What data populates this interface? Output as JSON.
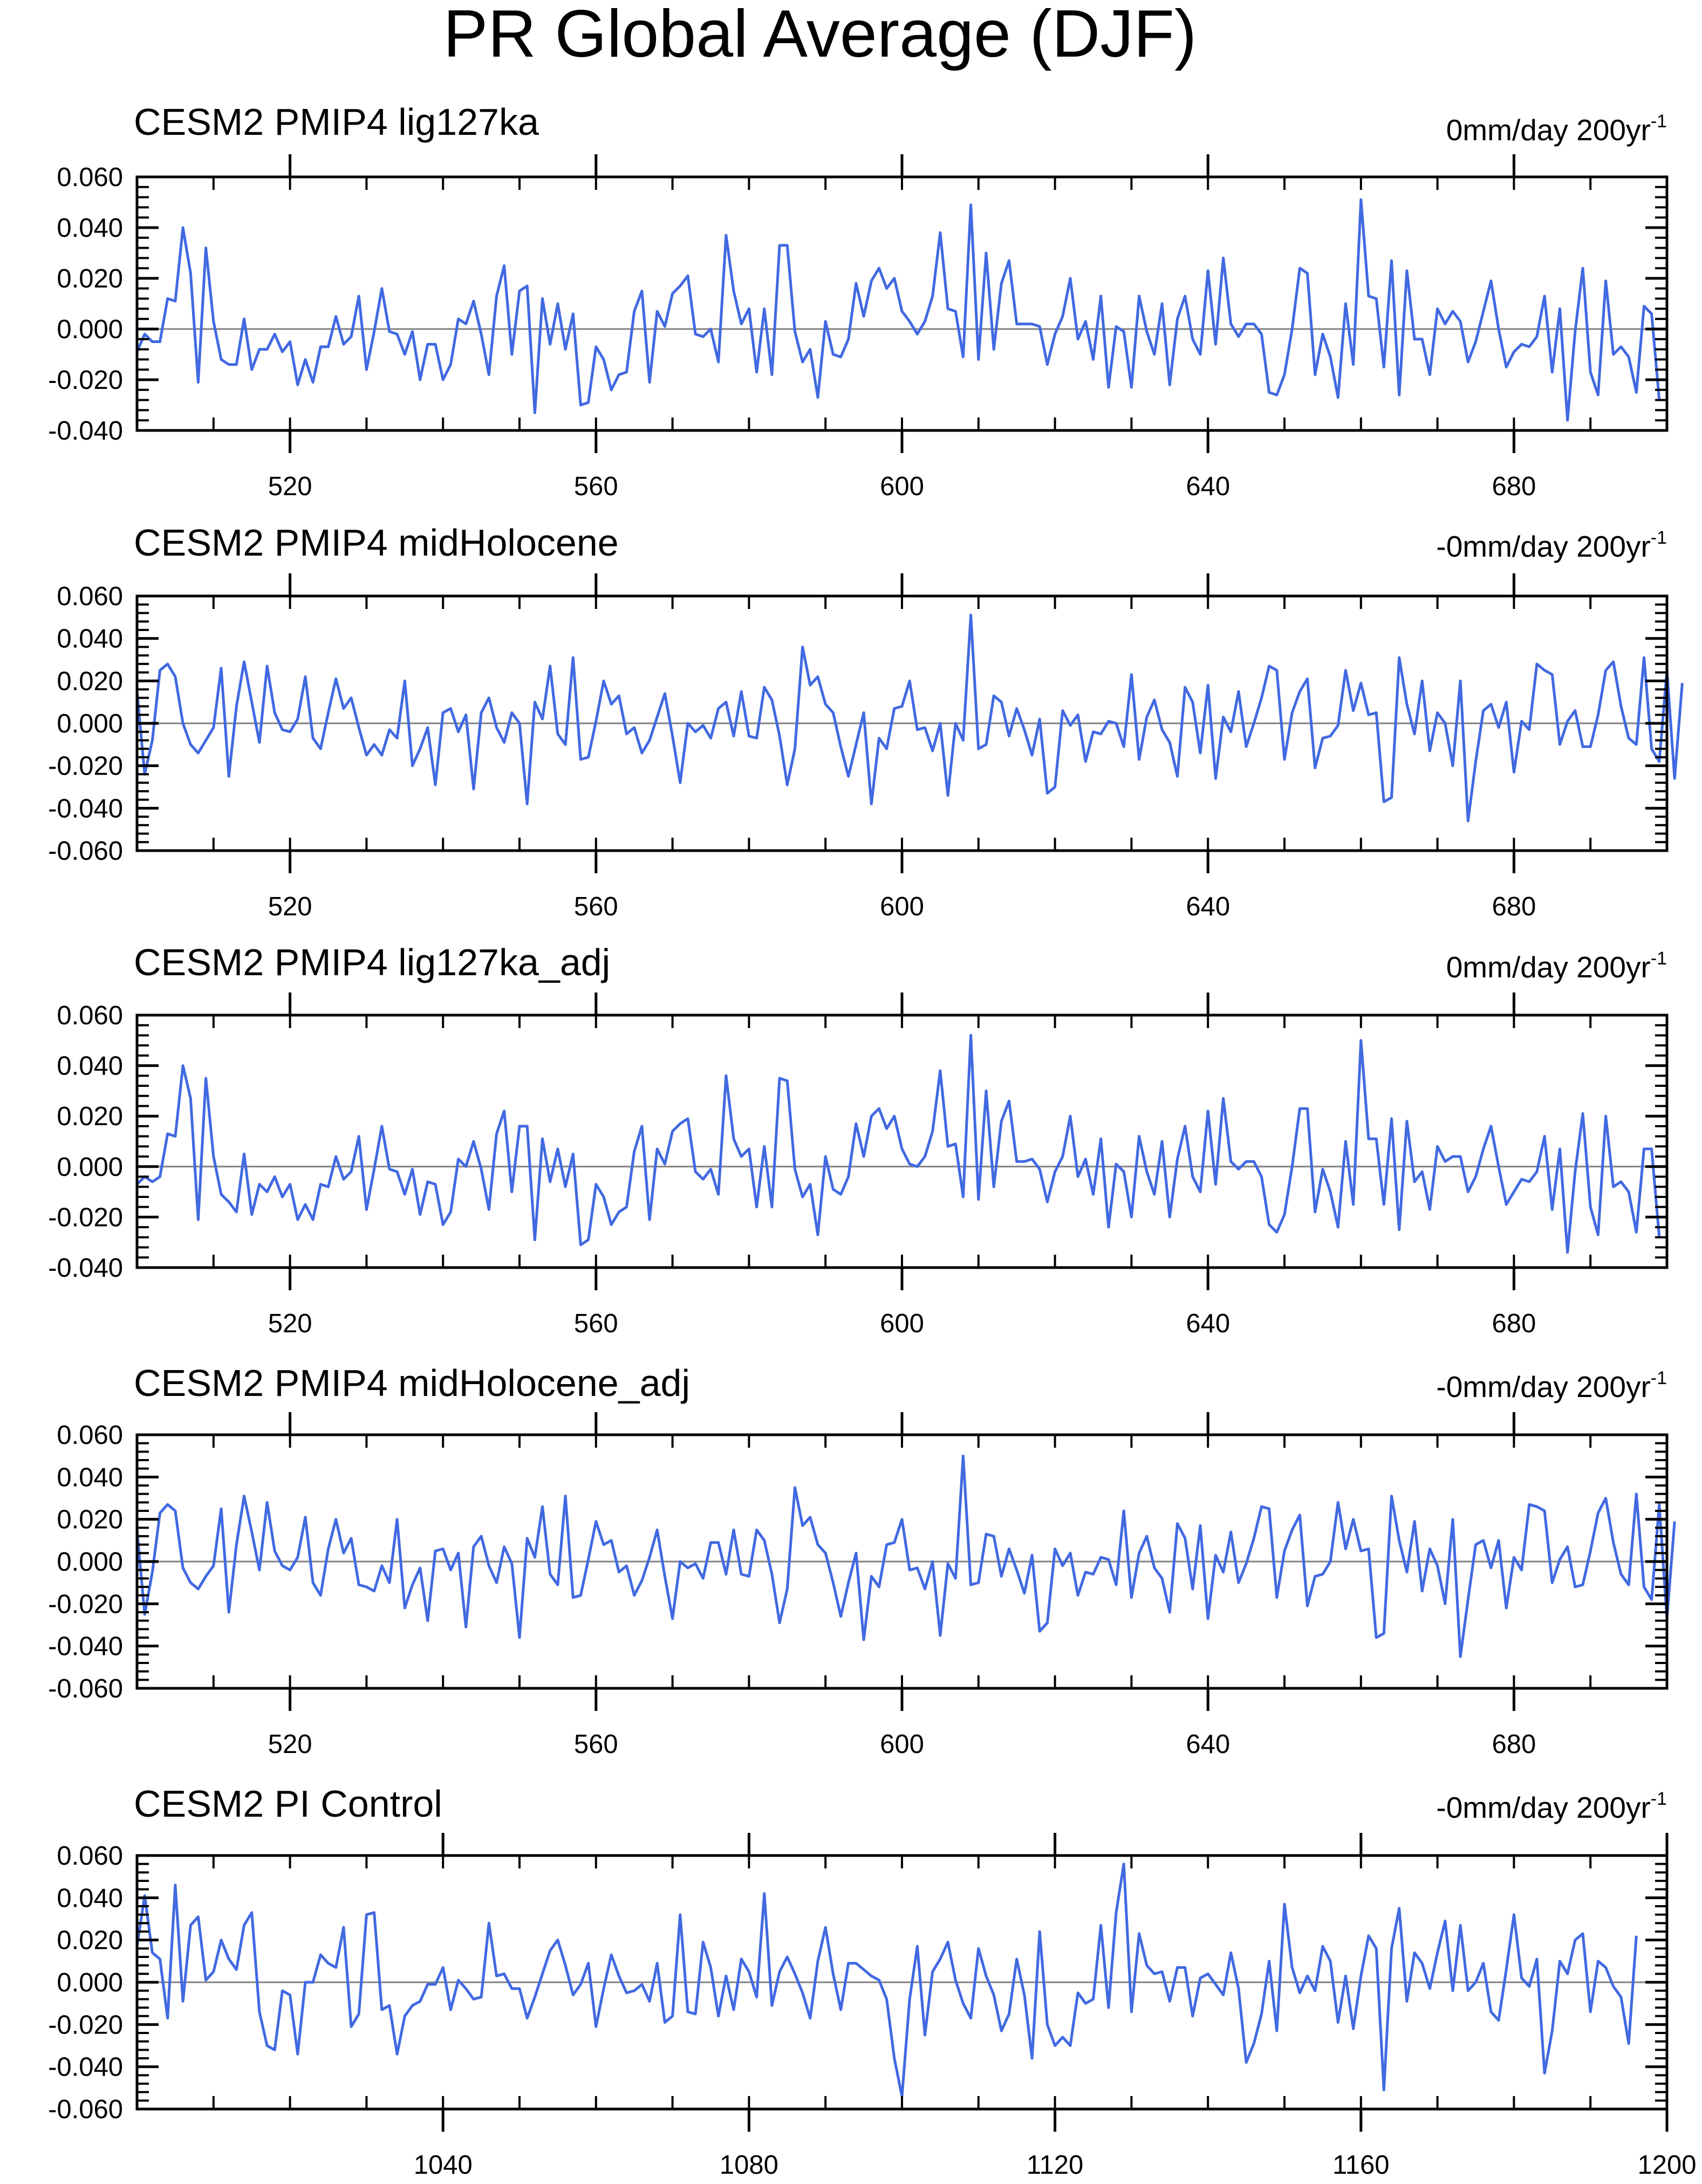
{
  "figure": {
    "title": "PR Global Average (DJF)"
  },
  "style": {
    "line_color": "#4169e1",
    "zero_color": "#808080",
    "axis_color": "#000000"
  },
  "chart_data": [
    {
      "type": "line",
      "title": "CESM2 PMIP4 lig127ka",
      "trend_text": "0mm/day 200yr",
      "trend_exponent": "-1",
      "xlim": [
        500,
        700
      ],
      "ylim": [
        -0.04,
        0.06
      ],
      "yticks": [
        "0.060",
        "0.040",
        "0.020",
        "0.000",
        "-0.020",
        "-0.040"
      ],
      "ytick_values": [
        0.06,
        0.04,
        0.02,
        0.0,
        -0.02,
        -0.04
      ],
      "xticks": [
        "520",
        "560",
        "600",
        "640",
        "680"
      ],
      "xtick_values": [
        520,
        560,
        600,
        640,
        680
      ],
      "x_start": 500,
      "x_step": 1,
      "values": [
        -0.009,
        -0.002,
        -0.005,
        -0.005,
        0.012,
        0.011,
        0.04,
        0.022,
        -0.021,
        0.032,
        0.003,
        -0.012,
        -0.014,
        -0.014,
        0.004,
        -0.016,
        -0.008,
        -0.008,
        -0.002,
        -0.009,
        -0.005,
        -0.022,
        -0.012,
        -0.021,
        -0.007,
        -0.007,
        0.005,
        -0.006,
        -0.003,
        0.013,
        -0.016,
        -0.001,
        0.016,
        -0.001,
        -0.002,
        -0.01,
        -0.001,
        -0.02,
        -0.006,
        -0.006,
        -0.02,
        -0.014,
        0.004,
        0.002,
        0.011,
        -0.002,
        -0.018,
        0.013,
        0.025,
        -0.01,
        0.015,
        0.017,
        -0.033,
        0.012,
        -0.006,
        0.01,
        -0.008,
        0.006,
        -0.03,
        -0.029,
        -0.007,
        -0.012,
        -0.024,
        -0.018,
        -0.017,
        0.007,
        0.015,
        -0.021,
        0.007,
        0.001,
        0.014,
        0.017,
        0.021,
        -0.002,
        -0.003,
        0.0,
        -0.013,
        0.037,
        0.015,
        0.002,
        0.008,
        -0.017,
        0.008,
        -0.018,
        0.033,
        0.033,
        -0.001,
        -0.013,
        -0.008,
        -0.027,
        0.003,
        -0.01,
        -0.011,
        -0.004,
        0.018,
        0.005,
        0.019,
        0.024,
        0.016,
        0.02,
        0.007,
        0.003,
        -0.002,
        0.003,
        0.013,
        0.038,
        0.008,
        0.007,
        -0.011,
        0.049,
        -0.012,
        0.03,
        -0.008,
        0.018,
        0.027,
        0.002,
        0.002,
        0.002,
        0.001,
        -0.014,
        -0.002,
        0.005,
        0.02,
        -0.004,
        0.003,
        -0.012,
        0.013,
        -0.023,
        0.001,
        -0.001,
        -0.023,
        0.013,
        -0.001,
        -0.01,
        0.01,
        -0.022,
        0.004,
        0.013,
        -0.004,
        -0.01,
        0.023,
        -0.006,
        0.028,
        0.002,
        -0.003,
        0.002,
        0.002,
        -0.002,
        -0.025,
        -0.026,
        -0.018,
        0.0,
        0.024,
        0.022,
        -0.018,
        -0.002,
        -0.011,
        -0.027,
        0.01,
        -0.014,
        0.051,
        0.013,
        0.012,
        -0.015,
        0.027,
        -0.026,
        0.023,
        -0.004,
        -0.004,
        -0.018,
        0.008,
        0.002,
        0.007,
        0.003,
        -0.013,
        -0.005,
        0.007,
        0.019,
        0.0,
        -0.015,
        -0.009,
        -0.006,
        -0.007,
        -0.003,
        0.013,
        -0.017,
        0.008,
        -0.036,
        -0.001,
        0.024,
        -0.017,
        -0.026,
        0.019,
        -0.01,
        -0.007,
        -0.011,
        -0.025,
        0.009,
        0.006,
        -0.028
      ]
    },
    {
      "type": "line",
      "title": "CESM2 PMIP4 midHolocene",
      "trend_text": "-0mm/day 200yr",
      "trend_exponent": "-1",
      "xlim": [
        500,
        700
      ],
      "ylim": [
        -0.06,
        0.06
      ],
      "yticks": [
        "0.060",
        "0.040",
        "0.020",
        "0.000",
        "-0.020",
        "-0.040",
        "-0.060"
      ],
      "ytick_values": [
        0.06,
        0.04,
        0.02,
        0.0,
        -0.02,
        -0.04,
        -0.06
      ],
      "xticks": [
        "520",
        "560",
        "600",
        "640",
        "680"
      ],
      "xtick_values": [
        520,
        560,
        600,
        640,
        680
      ],
      "x_start": 500,
      "x_step": 1,
      "values": [
        0.015,
        -0.024,
        -0.008,
        0.025,
        0.028,
        0.022,
        0.0,
        -0.01,
        -0.014,
        -0.008,
        -0.002,
        0.026,
        -0.025,
        0.008,
        0.029,
        0.01,
        -0.009,
        0.027,
        0.005,
        -0.003,
        -0.004,
        0.002,
        0.022,
        -0.007,
        -0.012,
        0.005,
        0.021,
        0.007,
        0.012,
        -0.002,
        -0.015,
        -0.01,
        -0.015,
        -0.003,
        -0.007,
        0.02,
        -0.02,
        -0.012,
        -0.002,
        -0.029,
        0.005,
        0.007,
        -0.004,
        0.004,
        -0.031,
        0.005,
        0.012,
        -0.002,
        -0.009,
        0.005,
        0.0,
        -0.038,
        0.01,
        0.002,
        0.027,
        -0.005,
        -0.01,
        0.031,
        -0.017,
        -0.016,
        0.001,
        0.02,
        0.009,
        0.013,
        -0.005,
        -0.002,
        -0.014,
        -0.008,
        0.003,
        0.014,
        -0.006,
        -0.028,
        0.0,
        -0.004,
        -0.001,
        -0.007,
        0.007,
        0.01,
        -0.006,
        0.015,
        -0.006,
        -0.007,
        0.017,
        0.011,
        -0.006,
        -0.029,
        -0.012,
        0.036,
        0.018,
        0.022,
        0.009,
        0.005,
        -0.011,
        -0.025,
        -0.01,
        0.005,
        -0.038,
        -0.007,
        -0.012,
        0.007,
        0.008,
        0.02,
        -0.003,
        -0.002,
        -0.013,
        0.0,
        -0.034,
        0.0,
        -0.008,
        0.051,
        -0.012,
        -0.01,
        0.013,
        0.01,
        -0.006,
        0.007,
        -0.003,
        -0.015,
        0.002,
        -0.033,
        -0.03,
        0.006,
        -0.001,
        0.004,
        -0.018,
        -0.004,
        -0.005,
        0.001,
        0.0,
        -0.011,
        0.023,
        -0.017,
        0.003,
        0.011,
        -0.003,
        -0.009,
        -0.025,
        0.017,
        0.01,
        -0.014,
        0.018,
        -0.026,
        0.003,
        -0.004,
        0.015,
        -0.011,
        0.0,
        0.012,
        0.027,
        0.025,
        -0.017,
        0.005,
        0.015,
        0.021,
        -0.021,
        -0.007,
        -0.006,
        -0.001,
        0.025,
        0.006,
        0.019,
        0.004,
        0.005,
        -0.037,
        -0.035,
        0.031,
        0.009,
        -0.005,
        0.02,
        -0.013,
        0.005,
        0.0,
        -0.02,
        0.02,
        -0.046,
        -0.018,
        0.006,
        0.009,
        -0.002,
        0.01,
        -0.023,
        0.001,
        -0.003,
        0.028,
        0.025,
        0.023,
        -0.01,
        0.001,
        0.006,
        -0.011,
        -0.011,
        0.004,
        0.025,
        0.029,
        0.008,
        -0.007,
        -0.01,
        0.031,
        -0.012,
        -0.018,
        0.025,
        -0.026,
        0.019
      ]
    },
    {
      "type": "line",
      "title": "CESM2 PMIP4 lig127ka_adj",
      "trend_text": "0mm/day 200yr",
      "trend_exponent": "-1",
      "xlim": [
        500,
        700
      ],
      "ylim": [
        -0.04,
        0.06
      ],
      "yticks": [
        "0.060",
        "0.040",
        "0.020",
        "0.000",
        "-0.020",
        "-0.040"
      ],
      "ytick_values": [
        0.06,
        0.04,
        0.02,
        0.0,
        -0.02,
        -0.04
      ],
      "xticks": [
        "520",
        "560",
        "600",
        "640",
        "680"
      ],
      "xtick_values": [
        520,
        560,
        600,
        640,
        680
      ],
      "x_start": 500,
      "x_step": 1,
      "values": [
        -0.007,
        -0.004,
        -0.006,
        -0.004,
        0.013,
        0.012,
        0.04,
        0.027,
        -0.021,
        0.035,
        0.004,
        -0.011,
        -0.014,
        -0.018,
        0.005,
        -0.019,
        -0.007,
        -0.01,
        -0.004,
        -0.012,
        -0.007,
        -0.021,
        -0.015,
        -0.021,
        -0.007,
        -0.008,
        0.004,
        -0.005,
        -0.002,
        0.012,
        -0.017,
        -0.001,
        0.016,
        -0.001,
        -0.002,
        -0.011,
        -0.001,
        -0.019,
        -0.006,
        -0.007,
        -0.023,
        -0.018,
        0.003,
        0.0,
        0.01,
        -0.001,
        -0.017,
        0.013,
        0.022,
        -0.01,
        0.016,
        0.016,
        -0.029,
        0.011,
        -0.006,
        0.007,
        -0.008,
        0.005,
        -0.031,
        -0.029,
        -0.007,
        -0.012,
        -0.023,
        -0.018,
        -0.016,
        0.006,
        0.016,
        -0.021,
        0.007,
        0.001,
        0.014,
        0.017,
        0.019,
        -0.002,
        -0.005,
        -0.001,
        -0.011,
        0.036,
        0.011,
        0.004,
        0.007,
        -0.016,
        0.008,
        -0.016,
        0.035,
        0.034,
        -0.001,
        -0.012,
        -0.007,
        -0.027,
        0.004,
        -0.009,
        -0.011,
        -0.004,
        0.017,
        0.004,
        0.02,
        0.023,
        0.015,
        0.02,
        0.007,
        0.001,
        0.0,
        0.004,
        0.014,
        0.038,
        0.008,
        0.009,
        -0.012,
        0.052,
        -0.013,
        0.03,
        -0.008,
        0.018,
        0.026,
        0.002,
        0.002,
        0.003,
        -0.001,
        -0.014,
        -0.002,
        0.004,
        0.02,
        -0.004,
        0.003,
        -0.011,
        0.011,
        -0.024,
        0.001,
        -0.002,
        -0.02,
        0.012,
        -0.002,
        -0.011,
        0.01,
        -0.02,
        0.003,
        0.016,
        -0.004,
        -0.01,
        0.022,
        -0.007,
        0.027,
        0.002,
        -0.001,
        0.002,
        0.002,
        -0.004,
        -0.023,
        -0.026,
        -0.019,
        0.0,
        0.023,
        0.023,
        -0.018,
        -0.001,
        -0.01,
        -0.024,
        0.01,
        -0.015,
        0.05,
        0.011,
        0.011,
        -0.015,
        0.019,
        -0.025,
        0.018,
        -0.006,
        -0.002,
        -0.017,
        0.008,
        0.002,
        0.004,
        0.004,
        -0.01,
        -0.004,
        0.007,
        0.016,
        0.0,
        -0.015,
        -0.01,
        -0.005,
        -0.006,
        -0.002,
        0.012,
        -0.017,
        0.007,
        -0.034,
        -0.002,
        0.021,
        -0.016,
        -0.027,
        0.02,
        -0.008,
        -0.006,
        -0.01,
        -0.026,
        0.007,
        0.007,
        -0.028
      ]
    },
    {
      "type": "line",
      "title": "CESM2 PMIP4 midHolocene_adj",
      "trend_text": "-0mm/day 200yr",
      "trend_exponent": "-1",
      "xlim": [
        500,
        700
      ],
      "ylim": [
        -0.06,
        0.06
      ],
      "yticks": [
        "0.060",
        "0.040",
        "0.020",
        "0.000",
        "-0.020",
        "-0.040",
        "-0.060"
      ],
      "ytick_values": [
        0.06,
        0.04,
        0.02,
        0.0,
        -0.02,
        -0.04,
        -0.06
      ],
      "xticks": [
        "520",
        "560",
        "600",
        "640",
        "680"
      ],
      "xtick_values": [
        520,
        560,
        600,
        640,
        680
      ],
      "x_start": 500,
      "x_step": 1,
      "values": [
        0.015,
        -0.025,
        -0.005,
        0.023,
        0.027,
        0.024,
        -0.003,
        -0.01,
        -0.013,
        -0.007,
        -0.002,
        0.025,
        -0.024,
        0.008,
        0.031,
        0.014,
        -0.004,
        0.028,
        0.005,
        -0.002,
        -0.004,
        0.002,
        0.021,
        -0.01,
        -0.016,
        0.006,
        0.02,
        0.004,
        0.011,
        -0.011,
        -0.012,
        -0.014,
        -0.002,
        -0.01,
        0.02,
        -0.022,
        -0.011,
        -0.003,
        -0.028,
        0.005,
        0.006,
        -0.004,
        0.004,
        -0.031,
        0.007,
        0.012,
        -0.002,
        -0.01,
        0.007,
        -0.001,
        -0.036,
        0.011,
        0.002,
        0.026,
        -0.006,
        -0.011,
        0.031,
        -0.017,
        -0.016,
        0.001,
        0.019,
        0.008,
        0.01,
        -0.005,
        -0.002,
        -0.016,
        -0.009,
        0.002,
        0.015,
        -0.007,
        -0.027,
        0.0,
        -0.003,
        -0.001,
        -0.008,
        0.009,
        0.009,
        -0.006,
        0.015,
        -0.006,
        -0.007,
        0.015,
        0.01,
        -0.006,
        -0.029,
        -0.013,
        0.035,
        0.017,
        0.021,
        0.008,
        0.004,
        -0.01,
        -0.026,
        -0.01,
        0.004,
        -0.037,
        -0.007,
        -0.012,
        0.008,
        0.009,
        0.02,
        -0.004,
        -0.003,
        -0.013,
        0.0,
        -0.035,
        -0.001,
        -0.008,
        0.05,
        -0.011,
        -0.01,
        0.013,
        0.012,
        -0.007,
        0.006,
        -0.004,
        -0.015,
        0.003,
        -0.033,
        -0.029,
        0.006,
        -0.002,
        0.004,
        -0.016,
        -0.005,
        -0.006,
        0.002,
        0.001,
        -0.011,
        0.024,
        -0.017,
        0.004,
        0.012,
        -0.003,
        -0.008,
        -0.024,
        0.018,
        0.011,
        -0.013,
        0.017,
        -0.027,
        0.003,
        -0.005,
        0.014,
        -0.01,
        -0.001,
        0.011,
        0.026,
        0.025,
        -0.017,
        0.005,
        0.015,
        0.022,
        -0.021,
        -0.007,
        -0.006,
        0.0,
        0.028,
        0.006,
        0.02,
        0.005,
        0.006,
        -0.036,
        -0.034,
        0.031,
        0.01,
        -0.005,
        0.019,
        -0.014,
        0.006,
        -0.002,
        -0.02,
        0.02,
        -0.045,
        -0.018,
        0.008,
        0.01,
        -0.003,
        0.01,
        -0.022,
        0.002,
        -0.004,
        0.027,
        0.026,
        0.024,
        -0.01,
        0.001,
        0.007,
        -0.012,
        -0.011,
        0.005,
        0.023,
        0.03,
        0.009,
        -0.006,
        -0.011,
        0.032,
        -0.012,
        -0.018,
        0.027,
        -0.027,
        0.019
      ]
    },
    {
      "type": "line",
      "title": "CESM2 PI Control",
      "trend_text": "-0mm/day 200yr",
      "trend_exponent": "-1",
      "xlim": [
        1000,
        1200
      ],
      "ylim": [
        -0.06,
        0.06
      ],
      "yticks": [
        "0.060",
        "0.040",
        "0.020",
        "0.000",
        "-0.020",
        "-0.040",
        "-0.060"
      ],
      "ytick_values": [
        0.06,
        0.04,
        0.02,
        0.0,
        -0.02,
        -0.04,
        -0.06
      ],
      "xticks": [
        "1040",
        "1080",
        "1120",
        "1160",
        "1200"
      ],
      "xtick_values": [
        1040,
        1080,
        1120,
        1160,
        1200
      ],
      "x_start": 1000,
      "x_step": 1,
      "values": [
        0.017,
        0.041,
        0.014,
        0.011,
        -0.017,
        0.046,
        -0.009,
        0.027,
        0.031,
        0.001,
        0.005,
        0.02,
        0.011,
        0.006,
        0.027,
        0.033,
        -0.014,
        -0.03,
        -0.032,
        -0.004,
        -0.006,
        -0.034,
        0.0,
        0.0,
        0.013,
        0.009,
        0.007,
        0.026,
        -0.021,
        -0.015,
        0.032,
        0.033,
        -0.013,
        -0.011,
        -0.034,
        -0.016,
        -0.011,
        -0.009,
        -0.001,
        -0.001,
        0.007,
        -0.013,
        0.001,
        -0.003,
        -0.008,
        -0.007,
        0.028,
        0.003,
        0.004,
        -0.003,
        -0.003,
        -0.017,
        -0.007,
        0.004,
        0.015,
        0.02,
        0.008,
        -0.006,
        -0.001,
        0.009,
        -0.021,
        -0.003,
        0.013,
        0.003,
        -0.005,
        -0.004,
        -0.001,
        -0.009,
        0.009,
        -0.019,
        -0.016,
        0.032,
        -0.014,
        -0.015,
        0.019,
        0.007,
        -0.016,
        0.003,
        -0.013,
        0.011,
        0.005,
        -0.007,
        0.042,
        -0.011,
        0.005,
        0.012,
        0.004,
        -0.005,
        -0.017,
        0.01,
        0.026,
        0.004,
        -0.013,
        0.009,
        0.009,
        0.006,
        0.003,
        0.001,
        -0.008,
        -0.036,
        -0.054,
        -0.008,
        0.017,
        -0.025,
        0.005,
        0.011,
        0.019,
        0.001,
        -0.01,
        -0.017,
        0.016,
        0.003,
        -0.006,
        -0.023,
        -0.015,
        0.011,
        -0.006,
        -0.036,
        0.024,
        -0.02,
        -0.03,
        -0.026,
        -0.03,
        -0.005,
        -0.01,
        -0.008,
        0.027,
        -0.012,
        0.033,
        0.056,
        -0.014,
        0.023,
        0.008,
        0.004,
        0.005,
        -0.009,
        0.007,
        0.007,
        -0.016,
        0.002,
        0.004,
        -0.001,
        -0.006,
        0.014,
        -0.003,
        -0.038,
        -0.029,
        -0.015,
        0.01,
        -0.023,
        0.037,
        0.007,
        -0.005,
        0.003,
        -0.004,
        0.017,
        0.01,
        -0.019,
        0.003,
        -0.022,
        0.003,
        0.022,
        0.016,
        -0.051,
        0.016,
        0.035,
        -0.009,
        0.014,
        0.009,
        -0.003,
        0.014,
        0.029,
        -0.004,
        0.027,
        -0.004,
        0.0,
        0.009,
        -0.014,
        -0.018,
        0.006,
        0.032,
        0.002,
        -0.002,
        0.011,
        -0.043,
        -0.023,
        0.01,
        0.004,
        0.02,
        0.023,
        -0.014,
        0.01,
        0.007,
        -0.002,
        -0.007,
        -0.029,
        0.022
      ]
    }
  ]
}
